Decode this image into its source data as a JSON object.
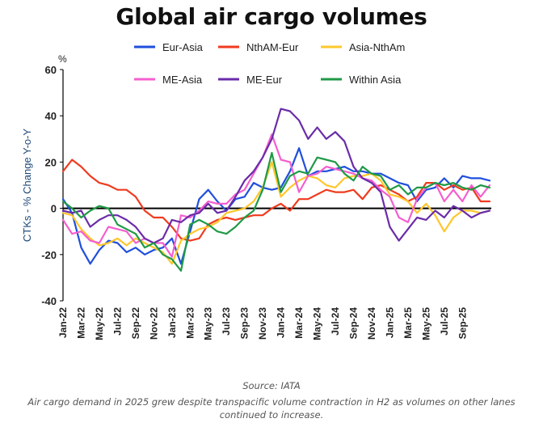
{
  "page_title": "Global air cargo volumes",
  "footer": {
    "source": "Source: IATA",
    "caption": "Air cargo demand in 2025 grew despite transpacific volume contraction in H2 as volumes on other lanes continued to increase."
  },
  "chart_data": {
    "type": "line",
    "title": "Global air cargo volumes",
    "ylabel": "CTKs - % Change Y-o-Y",
    "yunit": "%",
    "ylim": [
      -40,
      60
    ],
    "yticks": [
      -40,
      -20,
      0,
      20,
      40,
      60
    ],
    "x_tick_labels": [
      "Jan-22",
      "Mar-22",
      "May-22",
      "Jul-22",
      "Sep-22",
      "Nov-22",
      "Jan-23",
      "Mar-23",
      "May-23",
      "Jul-23",
      "Sep-23",
      "Nov-23",
      "Jan-24",
      "Mar-24",
      "May-24",
      "Jul-24",
      "Sep-24",
      "Nov-24",
      "Jan-25",
      "Mar-25",
      "May-25",
      "Jul-25",
      "Sep-25"
    ],
    "legend_position": "top",
    "series": [
      {
        "name": "Eur-Asia",
        "color": "#1f4fdc",
        "values": [
          4,
          -2,
          -17,
          -24,
          -18,
          -14,
          -15,
          -19,
          -17,
          -20,
          -18,
          -17,
          -13,
          -24,
          -10,
          4,
          8,
          3,
          -1,
          4,
          5,
          11,
          9,
          8,
          9,
          16,
          26,
          14,
          16,
          16,
          17,
          18,
          16,
          16,
          15,
          15,
          13,
          11,
          10,
          3,
          8,
          9,
          13,
          9,
          14,
          13,
          13,
          12
        ]
      },
      {
        "name": "NthAM-Eur",
        "color": "#ef3b1f",
        "values": [
          16,
          21,
          18,
          14,
          11,
          10,
          8,
          8,
          5,
          -1,
          -4,
          -4,
          -8,
          -13,
          -14,
          -13,
          -7,
          -5,
          -4,
          -5,
          -4,
          -3,
          -3,
          0,
          2,
          -1,
          4,
          4,
          6,
          8,
          7,
          7,
          8,
          4,
          9,
          10,
          8,
          6,
          3,
          5,
          11,
          11,
          8,
          10,
          8,
          9,
          3,
          3
        ]
      },
      {
        "name": "Asia-NthAm",
        "color": "#ffc72c",
        "values": [
          -2,
          -3,
          -9,
          -13,
          -16,
          -15,
          -13,
          -16,
          -13,
          -15,
          -17,
          -19,
          -24,
          -14,
          -11,
          -9,
          -8,
          -6,
          -2,
          -1,
          0,
          3,
          9,
          20,
          5,
          9,
          12,
          14,
          13,
          10,
          9,
          13,
          14,
          14,
          15,
          12,
          6,
          5,
          3,
          -2,
          2,
          -3,
          -10,
          -4,
          -1,
          -1,
          -2,
          -1
        ]
      },
      {
        "name": "ME-Asia",
        "color": "#f45fcf",
        "values": [
          -5,
          -11,
          -10,
          -14,
          -15,
          -8,
          -9,
          -10,
          -15,
          -13,
          -15,
          -15,
          -21,
          -3,
          -4,
          -1,
          3,
          2,
          2,
          6,
          8,
          15,
          22,
          32,
          21,
          20,
          7,
          14,
          15,
          18,
          17,
          16,
          15,
          13,
          12,
          8,
          5,
          -4,
          -6,
          4,
          9,
          11,
          3,
          8,
          3,
          10,
          5,
          10
        ]
      },
      {
        "name": "ME-Eur",
        "color": "#6a2ca8",
        "values": [
          -1,
          -2,
          -1,
          -8,
          -5,
          -3,
          -3,
          -5,
          -8,
          -13,
          -15,
          -13,
          -5,
          -6,
          -3,
          -2,
          2,
          -2,
          -1,
          5,
          12,
          16,
          22,
          30,
          43,
          42,
          38,
          30,
          35,
          30,
          33,
          29,
          18,
          13,
          11,
          7,
          -8,
          -14,
          -9,
          -4,
          -5,
          -1,
          -4,
          1,
          -1,
          -4,
          -2,
          -1
        ]
      },
      {
        "name": "Within Asia",
        "color": "#1f9a46",
        "values": [
          3,
          0,
          -4,
          -1,
          1,
          0,
          -7,
          -9,
          -11,
          -17,
          -15,
          -20,
          -22,
          -27,
          -7,
          -5,
          -7,
          -10,
          -11,
          -8,
          -4,
          -1,
          8,
          24,
          7,
          14,
          16,
          15,
          22,
          21,
          20,
          15,
          12,
          18,
          15,
          14,
          8,
          10,
          6,
          9,
          9,
          11,
          10,
          11,
          9,
          8,
          10,
          9
        ]
      }
    ]
  }
}
